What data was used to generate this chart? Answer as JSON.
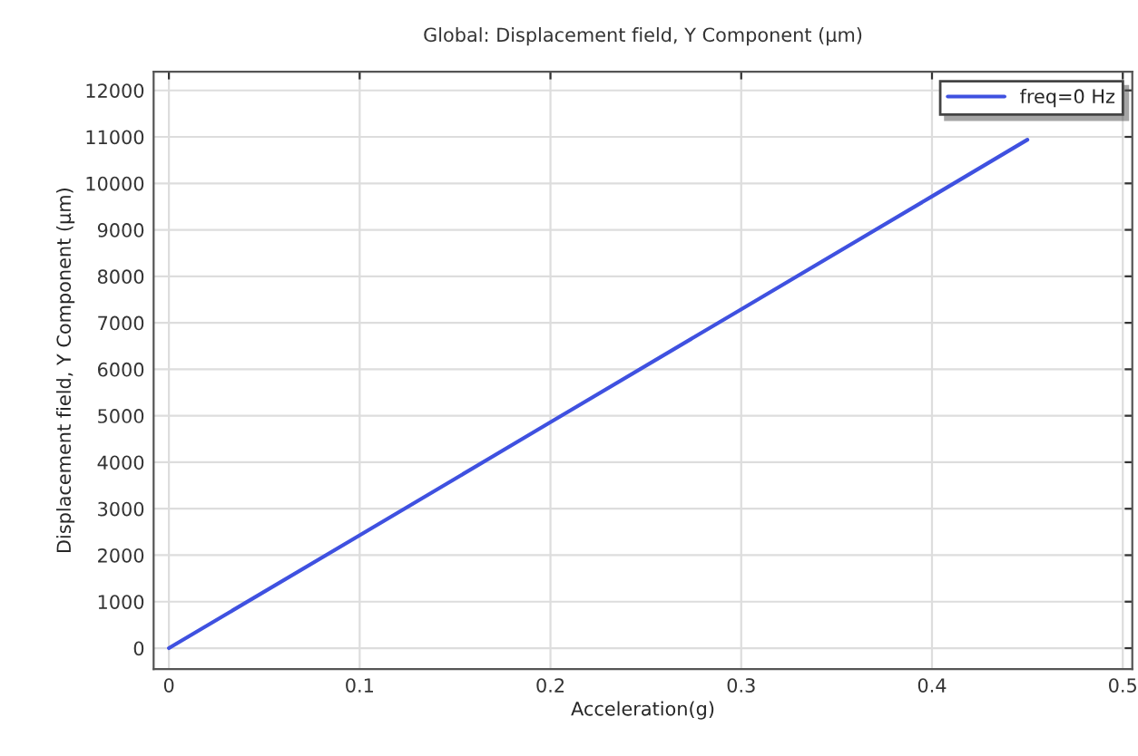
{
  "chart_data": {
    "type": "line",
    "title": "Global: Displacement field, Y Component (µm)",
    "xlabel": "Acceleration(g)",
    "ylabel": "Displacement field, Y Component (µm)",
    "series": [
      {
        "name": "freq=0 Hz",
        "color": "#3f51e0",
        "x": [
          0,
          0.1,
          0.2,
          0.3,
          0.4,
          0.45
        ],
        "values": [
          0,
          2430,
          4860,
          7290,
          9720,
          10940
        ]
      }
    ],
    "xlim": [
      -0.008,
      0.505
    ],
    "ylim": [
      -450,
      12400
    ],
    "xticks": [
      0,
      0.1,
      0.2,
      0.3,
      0.4,
      0.5
    ],
    "yticks": [
      0,
      1000,
      2000,
      3000,
      4000,
      5000,
      6000,
      7000,
      8000,
      9000,
      10000,
      11000,
      12000
    ],
    "grid": true,
    "legend": "top right",
    "marker": "none",
    "line_style": "solid"
  }
}
